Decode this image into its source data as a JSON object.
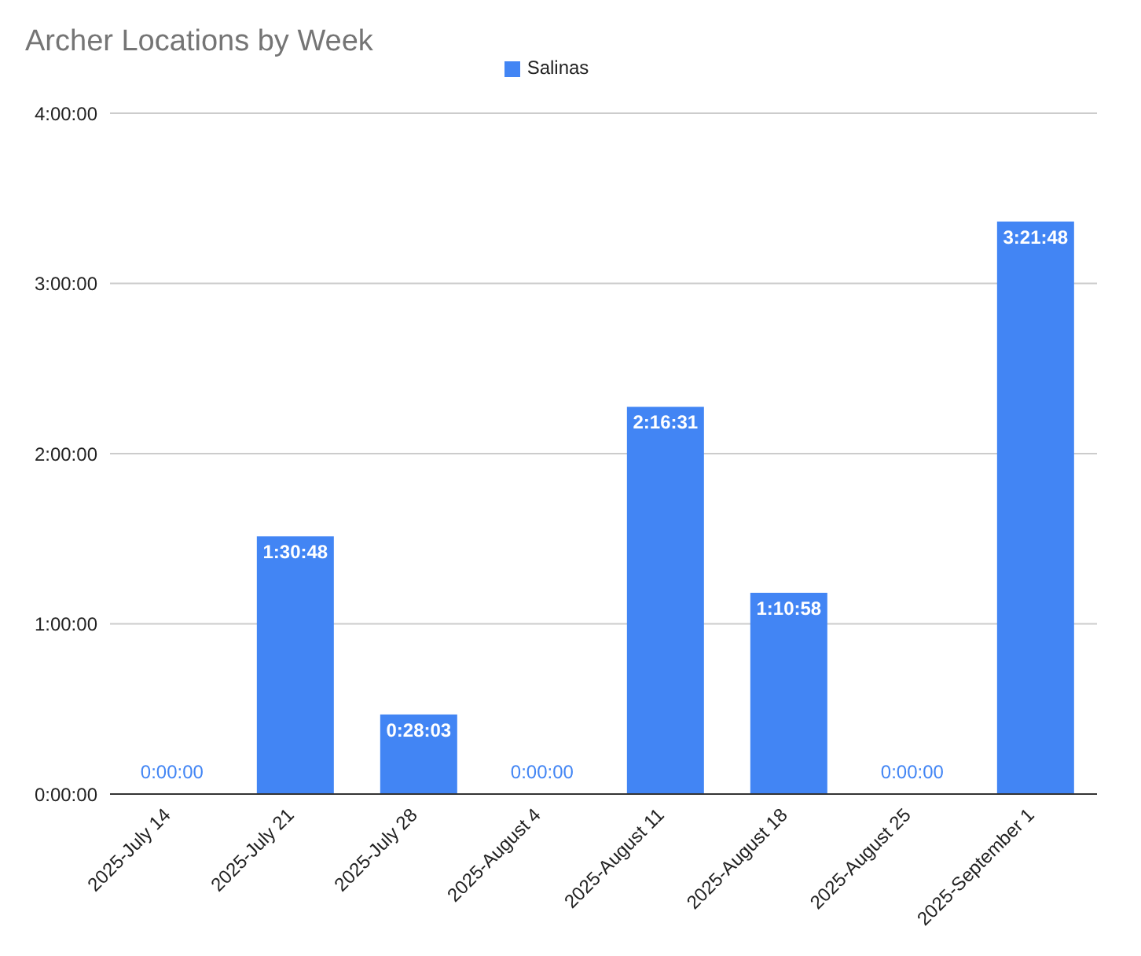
{
  "chart_data": {
    "type": "bar",
    "title": "Archer Locations by Week",
    "categories": [
      "2025-July 14",
      "2025-July 21",
      "2025-July 28",
      "2025-August 4",
      "2025-August 11",
      "2025-August 18",
      "2025-August 25",
      "2025-September 1"
    ],
    "series": [
      {
        "name": "Salinas",
        "color": "#4285f4",
        "values": [
          0,
          1.5133,
          0.4675,
          0,
          2.2753,
          1.1828,
          0,
          3.3633
        ],
        "value_labels": [
          "0:00:00",
          "1:30:48",
          "0:28:03",
          "0:00:00",
          "2:16:31",
          "1:10:58",
          "0:00:00",
          "3:21:48"
        ]
      }
    ],
    "ylim": [
      0,
      4
    ],
    "yticks": [
      {
        "value": 0,
        "label": "0:00:00"
      },
      {
        "value": 1,
        "label": "1:00:00"
      },
      {
        "value": 2,
        "label": "2:00:00"
      },
      {
        "value": 3,
        "label": "3:00:00"
      },
      {
        "value": 4,
        "label": "4:00:00"
      }
    ],
    "grid": "y",
    "legend": "top"
  }
}
